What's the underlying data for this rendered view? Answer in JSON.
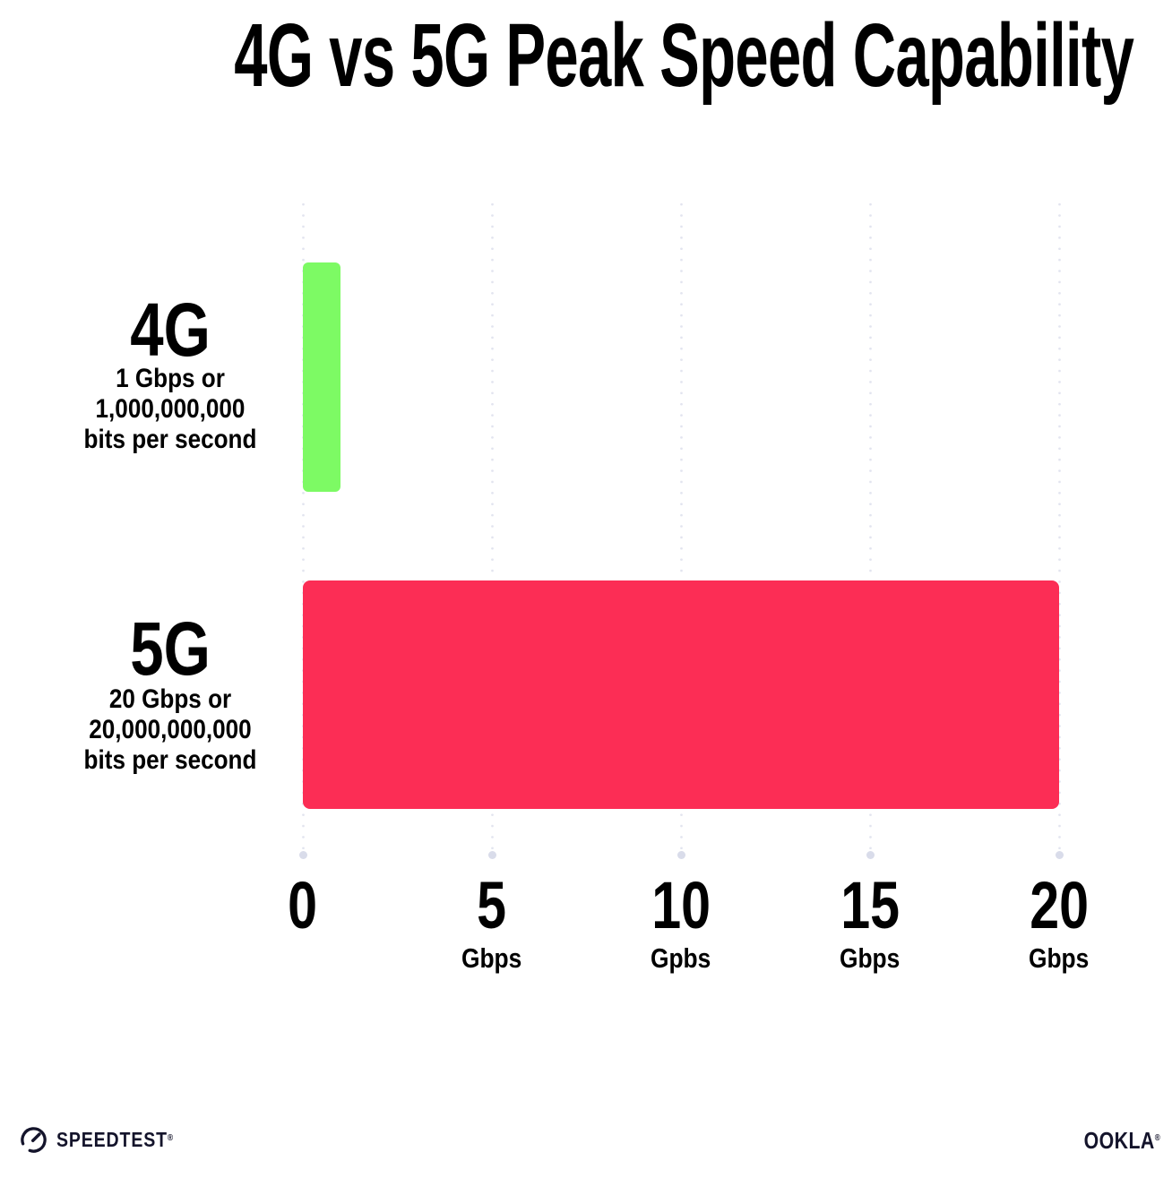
{
  "title": "4G vs 5G Peak Speed Capability",
  "chart_data": {
    "type": "bar",
    "orientation": "horizontal",
    "title": "4G vs 5G Peak Speed Capability",
    "xlabel": "",
    "ylabel": "",
    "xlim": [
      0,
      20
    ],
    "grid": "vertical-dotted",
    "legend": "none",
    "categories": [
      "4G",
      "5G"
    ],
    "values": [
      1,
      20
    ],
    "rows": [
      {
        "label": "4G",
        "value": 1,
        "color": "#7DFA64",
        "sublabel_line1": "1 Gbps or",
        "sublabel_line2": "1,000,000,000",
        "sublabel_line3": "bits per second"
      },
      {
        "label": "5G",
        "value": 20,
        "color": "#FC2D55",
        "sublabel_line1": "20 Gbps or",
        "sublabel_line2": "20,000,000,000",
        "sublabel_line3": "bits per second"
      }
    ],
    "x_ticks": [
      {
        "value": 0,
        "label": "0",
        "unit": ""
      },
      {
        "value": 5,
        "label": "5",
        "unit": "Gbps"
      },
      {
        "value": 10,
        "label": "10",
        "unit": "Gpbs"
      },
      {
        "value": 15,
        "label": "15",
        "unit": "Gbps"
      },
      {
        "value": 20,
        "label": "20",
        "unit": "Gbps"
      }
    ]
  },
  "footer": {
    "speedtest_wordmark": "SPEEDTEST",
    "speedtest_mark": "®",
    "ookla_wordmark": "OOKLA",
    "ookla_mark": "®"
  },
  "colors": {
    "background": "#FFFFFF",
    "bar_4g": "#7DFA64",
    "bar_5g": "#FC2D55",
    "grid_dot": "#E2E4EF",
    "grid_dot_end": "#D9DCEA",
    "text": "#000000",
    "footer_text": "#14142B"
  }
}
